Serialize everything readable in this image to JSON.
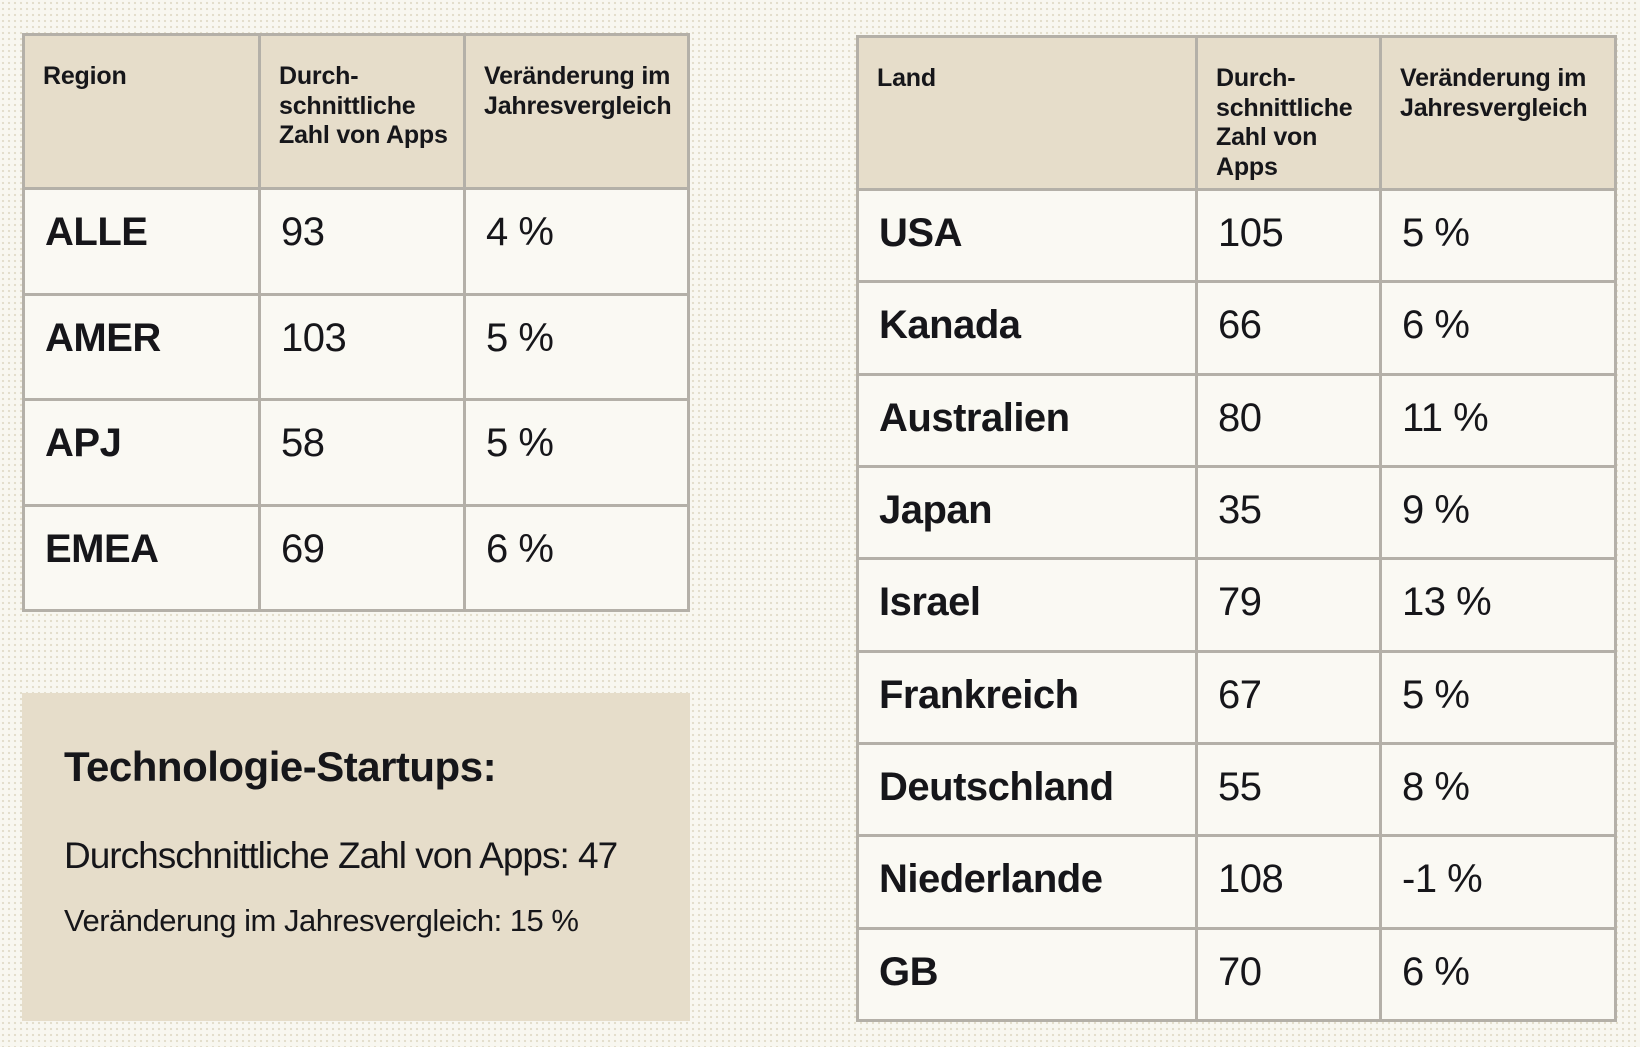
{
  "page": {
    "background_color": "#f8f7f0",
    "beige_color": "#e6ddca",
    "grid_line_color": "#b4b0a8",
    "text_color": "#16161a"
  },
  "chart_data": [
    {
      "type": "table",
      "name": "apps-by-region",
      "columns": [
        "Region",
        "Durch-\nschnittliche\nZahl von Apps",
        "Veränderung im\nJahresvergleich"
      ],
      "rows": [
        [
          "ALLE",
          "93",
          "4 %"
        ],
        [
          "AMER",
          "103",
          "5 %"
        ],
        [
          "APJ",
          "58",
          "5 %"
        ],
        [
          "EMEA",
          "69",
          "6 %"
        ]
      ]
    },
    {
      "type": "table",
      "name": "apps-by-country",
      "columns": [
        "Land",
        "Durch-\nschnittliche\nZahl von Apps",
        "Veränderung im\nJahresvergleich"
      ],
      "rows": [
        [
          "USA",
          "105",
          "5 %"
        ],
        [
          "Kanada",
          "66",
          "6 %"
        ],
        [
          "Australien",
          "80",
          "11 %"
        ],
        [
          "Japan",
          "35",
          "9 %"
        ],
        [
          "Israel",
          "79",
          "13 %"
        ],
        [
          "Frankreich",
          "67",
          "5 %"
        ],
        [
          "Deutschland",
          "55",
          "8 %"
        ],
        [
          "Niederlande",
          "108",
          "-1 %"
        ],
        [
          "GB",
          "70",
          "6 %"
        ]
      ]
    }
  ],
  "callout": {
    "title": "Technologie-Startups:",
    "line1": "Durchschnittliche Zahl von Apps: 47",
    "line2": "Veränderung im Jahresvergleich: 15 %"
  }
}
